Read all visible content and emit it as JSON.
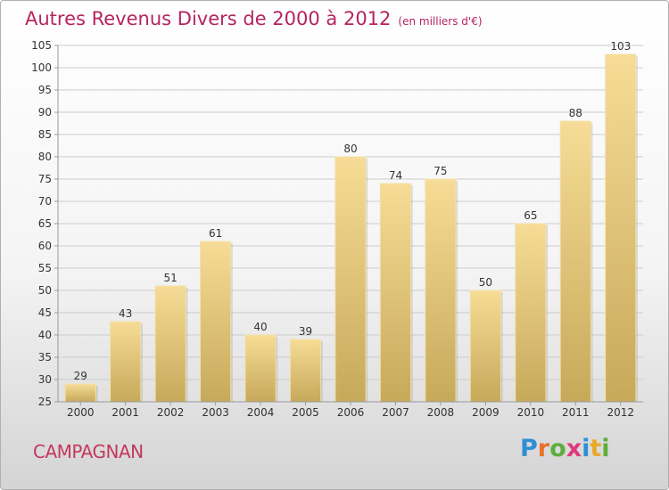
{
  "title": "Autres Revenus Divers de 2000 à 2012",
  "subtitle": "(en milliers d'€)",
  "commune": "CAMPAGNAN",
  "logo": {
    "text": "Proxiti",
    "letters": [
      {
        "ch": "P",
        "color": "#2f8fd4"
      },
      {
        "ch": "r",
        "color": "#e8722a"
      },
      {
        "ch": "o",
        "color": "#5cae3c"
      },
      {
        "ch": "x",
        "color": "#e03a7c"
      },
      {
        "ch": "i",
        "color": "#2f8fd4"
      },
      {
        "ch": "t",
        "color": "#e8a92a"
      },
      {
        "ch": "i",
        "color": "#5cae3c"
      }
    ]
  },
  "colors": {
    "bar_top": "#f6dc96",
    "bar_bottom": "#c7a95a",
    "title": "#b5245e",
    "grid": "#cccccc"
  },
  "chart_data": {
    "type": "bar",
    "title": "Autres Revenus Divers de 2000 à 2012",
    "subtitle": "(en milliers d'€)",
    "categories": [
      "2000",
      "2001",
      "2002",
      "2003",
      "2004",
      "2005",
      "2006",
      "2007",
      "2008",
      "2009",
      "2010",
      "2011",
      "2012"
    ],
    "values": [
      29,
      43,
      51,
      61,
      40,
      39,
      80,
      74,
      75,
      50,
      65,
      88,
      103
    ],
    "ylim": [
      25,
      105
    ],
    "yticks": [
      25,
      30,
      35,
      40,
      45,
      50,
      55,
      60,
      65,
      70,
      75,
      80,
      85,
      90,
      95,
      100,
      105
    ],
    "grid": true,
    "legend": "none"
  }
}
